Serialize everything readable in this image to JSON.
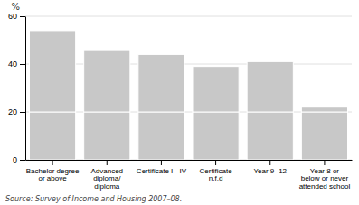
{
  "chart_data": {
    "type": "bar",
    "stacked": true,
    "grid": true,
    "y_label": "%",
    "source": "Source: Survey of Income and Housing 2007–08.",
    "categories": [
      "Bachelor degree\nor above",
      "Advanced\ndiploma/\ndiploma",
      "Certificate I - IV",
      "Certificate\nn.f.d",
      "Year 9 -12",
      "Year 8 or\nbelow or never\nattended school"
    ],
    "series": [
      {
        "color": "#c8c8c8",
        "values": [
          20,
          20,
          20,
          20,
          20,
          20
        ]
      },
      {
        "color": "#c8c8c8",
        "values": [
          34,
          26,
          24,
          19,
          21,
          2
        ]
      }
    ],
    "ylim": [
      0,
      60
    ],
    "yticks": [
      0,
      20,
      40,
      60
    ]
  }
}
